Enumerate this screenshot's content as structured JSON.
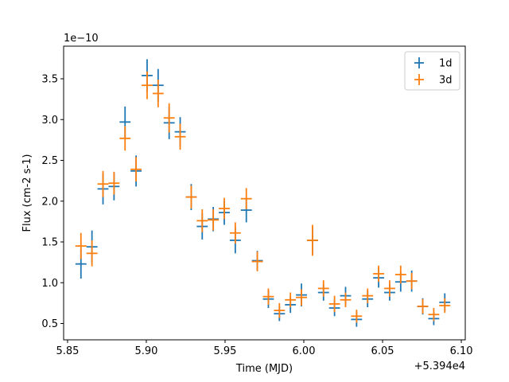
{
  "chart_data": {
    "type": "scatter",
    "xlabel": "Time (MJD)",
    "ylabel": "Flux (cm-2 s-1)",
    "x_offset_label": "+5.394e4",
    "y_scale_label": "1e−10",
    "xlim": [
      5.8475,
      6.1025
    ],
    "ylim": [
      0.3,
      3.9
    ],
    "x_ticks": [
      5.85,
      5.9,
      5.95,
      6.0,
      6.05,
      6.1
    ],
    "x_tick_labels": [
      "5.85",
      "5.90",
      "5.95",
      "6.00",
      "6.05",
      "6.10"
    ],
    "y_ticks": [
      0.5,
      1.0,
      1.5,
      2.0,
      2.5,
      3.0,
      3.5
    ],
    "y_tick_labels": [
      "0.5",
      "1.0",
      "1.5",
      "2.0",
      "2.5",
      "3.0",
      "3.5"
    ],
    "legend_position": "top-right",
    "grid": false,
    "x_halfwidth": 0.0035,
    "series": [
      {
        "name": "1d",
        "color": "#1f77b4",
        "points": [
          {
            "x": 5.8585,
            "y": 1.23,
            "yerr": 0.18
          },
          {
            "x": 5.8655,
            "y": 1.44,
            "yerr": 0.2
          },
          {
            "x": 5.8725,
            "y": 2.15,
            "yerr": 0.19
          },
          {
            "x": 5.8795,
            "y": 2.18,
            "yerr": 0.17
          },
          {
            "x": 5.8865,
            "y": 2.97,
            "yerr": 0.19
          },
          {
            "x": 5.8935,
            "y": 2.37,
            "yerr": 0.19
          },
          {
            "x": 5.9005,
            "y": 3.54,
            "yerr": 0.2
          },
          {
            "x": 5.9075,
            "y": 3.42,
            "yerr": 0.2
          },
          {
            "x": 5.9145,
            "y": 2.96,
            "yerr": 0.2
          },
          {
            "x": 5.9215,
            "y": 2.85,
            "yerr": 0.18
          },
          {
            "x": 5.9285,
            "y": 2.05,
            "yerr": 0.16
          },
          {
            "x": 5.9355,
            "y": 1.69,
            "yerr": 0.16
          },
          {
            "x": 5.9425,
            "y": 1.78,
            "yerr": 0.15
          },
          {
            "x": 5.9495,
            "y": 1.86,
            "yerr": 0.15
          },
          {
            "x": 5.9565,
            "y": 1.52,
            "yerr": 0.16
          },
          {
            "x": 5.9635,
            "y": 1.89,
            "yerr": 0.15
          },
          {
            "x": 5.9705,
            "y": 1.27,
            "yerr": 0.12
          },
          {
            "x": 5.9775,
            "y": 0.8,
            "yerr": 0.11
          },
          {
            "x": 5.9845,
            "y": 0.62,
            "yerr": 0.09
          },
          {
            "x": 5.9915,
            "y": 0.73,
            "yerr": 0.1
          },
          {
            "x": 5.9985,
            "y": 0.85,
            "yerr": 0.14
          },
          {
            "x": 6.0055,
            "y": 1.52,
            "yerr": 0.17
          },
          {
            "x": 6.0125,
            "y": 0.88,
            "yerr": 0.1
          },
          {
            "x": 6.0195,
            "y": 0.69,
            "yerr": 0.1
          },
          {
            "x": 6.0265,
            "y": 0.84,
            "yerr": 0.11
          },
          {
            "x": 6.0335,
            "y": 0.55,
            "yerr": 0.09
          },
          {
            "x": 6.0405,
            "y": 0.8,
            "yerr": 0.1
          },
          {
            "x": 6.0475,
            "y": 1.06,
            "yerr": 0.12
          },
          {
            "x": 6.0545,
            "y": 0.88,
            "yerr": 0.1
          },
          {
            "x": 6.0615,
            "y": 1.01,
            "yerr": 0.12
          },
          {
            "x": 6.0685,
            "y": 1.02,
            "yerr": 0.13
          },
          {
            "x": 6.0755,
            "y": 0.71,
            "yerr": 0.1
          },
          {
            "x": 6.0825,
            "y": 0.56,
            "yerr": 0.08
          },
          {
            "x": 6.0895,
            "y": 0.76,
            "yerr": 0.11
          }
        ]
      },
      {
        "name": "3d",
        "color": "#ff7f0e",
        "points": [
          {
            "x": 5.8585,
            "y": 1.45,
            "yerr": 0.16
          },
          {
            "x": 5.8655,
            "y": 1.36,
            "yerr": 0.16
          },
          {
            "x": 5.8725,
            "y": 2.21,
            "yerr": 0.16
          },
          {
            "x": 5.8795,
            "y": 2.22,
            "yerr": 0.14
          },
          {
            "x": 5.8865,
            "y": 2.77,
            "yerr": 0.15
          },
          {
            "x": 5.8935,
            "y": 2.39,
            "yerr": 0.15
          },
          {
            "x": 5.9005,
            "y": 3.42,
            "yerr": 0.17
          },
          {
            "x": 5.9075,
            "y": 3.32,
            "yerr": 0.17
          },
          {
            "x": 5.9145,
            "y": 3.02,
            "yerr": 0.18
          },
          {
            "x": 5.9215,
            "y": 2.79,
            "yerr": 0.16
          },
          {
            "x": 5.9285,
            "y": 2.05,
            "yerr": 0.14
          },
          {
            "x": 5.9355,
            "y": 1.76,
            "yerr": 0.14
          },
          {
            "x": 5.9425,
            "y": 1.77,
            "yerr": 0.13
          },
          {
            "x": 5.9495,
            "y": 1.91,
            "yerr": 0.13
          },
          {
            "x": 5.9565,
            "y": 1.61,
            "yerr": 0.13
          },
          {
            "x": 5.9635,
            "y": 2.03,
            "yerr": 0.13
          },
          {
            "x": 5.9705,
            "y": 1.26,
            "yerr": 0.12
          },
          {
            "x": 5.9775,
            "y": 0.83,
            "yerr": 0.1
          },
          {
            "x": 5.9845,
            "y": 0.66,
            "yerr": 0.09
          },
          {
            "x": 5.9915,
            "y": 0.79,
            "yerr": 0.09
          },
          {
            "x": 5.9985,
            "y": 0.82,
            "yerr": 0.1
          },
          {
            "x": 6.0055,
            "y": 1.52,
            "yerr": 0.19
          },
          {
            "x": 6.0125,
            "y": 0.93,
            "yerr": 0.1
          },
          {
            "x": 6.0195,
            "y": 0.74,
            "yerr": 0.1
          },
          {
            "x": 6.0265,
            "y": 0.79,
            "yerr": 0.09
          },
          {
            "x": 6.0335,
            "y": 0.59,
            "yerr": 0.08
          },
          {
            "x": 6.0405,
            "y": 0.84,
            "yerr": 0.09
          },
          {
            "x": 6.0475,
            "y": 1.11,
            "yerr": 0.1
          },
          {
            "x": 6.0545,
            "y": 0.93,
            "yerr": 0.1
          },
          {
            "x": 6.0615,
            "y": 1.1,
            "yerr": 0.11
          },
          {
            "x": 6.0685,
            "y": 1.02,
            "yerr": 0.1
          },
          {
            "x": 6.0755,
            "y": 0.71,
            "yerr": 0.09
          },
          {
            "x": 6.0825,
            "y": 0.61,
            "yerr": 0.08
          },
          {
            "x": 6.0895,
            "y": 0.72,
            "yerr": 0.09
          }
        ]
      }
    ]
  }
}
